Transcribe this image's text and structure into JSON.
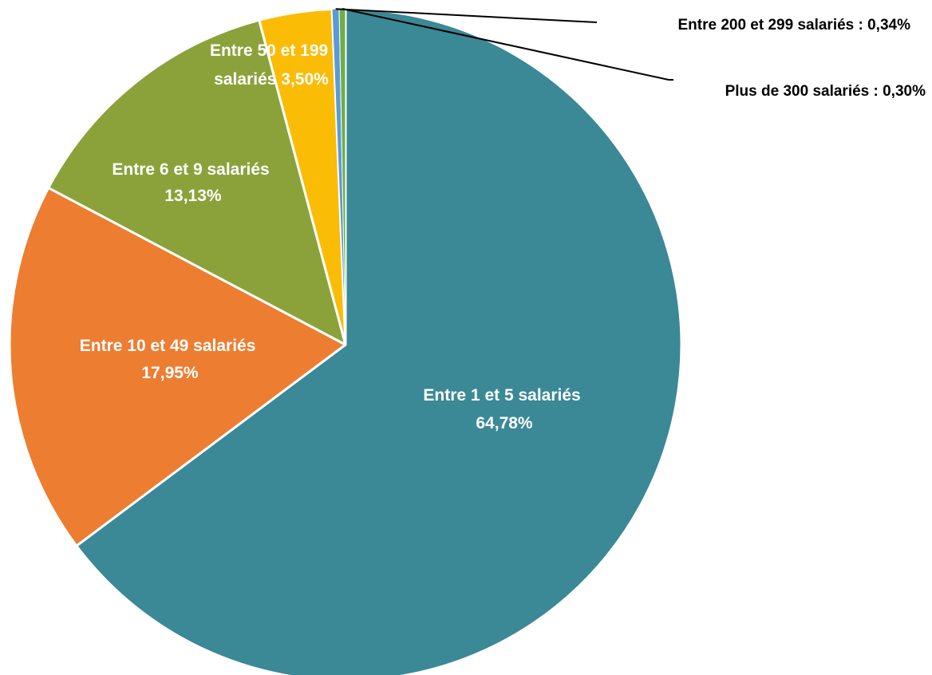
{
  "chart_data": {
    "type": "pie",
    "title": "",
    "series": [
      {
        "name": "Entre 1 et 5 salariés",
        "value": 64.78,
        "display": "64,78%",
        "color": "#3b8896"
      },
      {
        "name": "Entre 10 et 49 salariés",
        "value": 17.95,
        "display": "17,95%",
        "color": "#ed7d31"
      },
      {
        "name": "Entre 6 et 9 salariés",
        "value": 13.13,
        "display": "13,13%",
        "color": "#8ba23b"
      },
      {
        "name": "Entre 50 et 199 salariés",
        "value": 3.5,
        "display": "3,50%",
        "color": "#fbbc05"
      },
      {
        "name": "Entre 200 et 299 salariés",
        "value": 0.34,
        "display": "0,34%",
        "color": "#5b9bd5"
      },
      {
        "name": "Plus de 300 salariés",
        "value": 0.3,
        "display": "0,30%",
        "color": "#70ad47"
      }
    ],
    "labels": {
      "s0": [
        "Entre 1 et 5 salariés",
        "64,78%"
      ],
      "s1": [
        "Entre 10 et 49 salariés",
        "17,95%"
      ],
      "s2": [
        "Entre 6 et 9 salariés",
        "13,13%"
      ],
      "s3": [
        "Entre 50 et 199",
        "salariés 3,50%"
      ],
      "s4": "Entre 200 et 299 salariés : 0,34%",
      "s5": "Plus de 300 salariés : 0,30%"
    },
    "direction": "clockwise from top",
    "legend": "none"
  }
}
